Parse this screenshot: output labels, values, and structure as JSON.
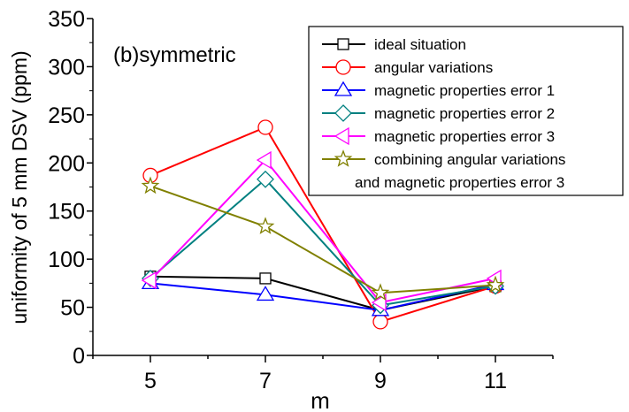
{
  "chart_data": {
    "type": "line",
    "title": "(b)symmetric",
    "xlabel": "m",
    "ylabel": "uniformity of 5 mm DSV (ppm)",
    "x": [
      5,
      7,
      9,
      11
    ],
    "xlim": [
      4,
      12
    ],
    "ylim": [
      0,
      350
    ],
    "xticks": [
      "5",
      "7",
      "9",
      "11"
    ],
    "yticks": [
      "0",
      "50",
      "100",
      "150",
      "200",
      "250",
      "300",
      "350"
    ],
    "legend_position": "top-right",
    "series": [
      {
        "name": "ideal situation",
        "color": "#000000",
        "marker": "square",
        "values": [
          82,
          80,
          47,
          72
        ]
      },
      {
        "name": "angular variations",
        "color": "#ff0000",
        "marker": "circle",
        "values": [
          187,
          237,
          35,
          72
        ]
      },
      {
        "name": "magnetic properties error 1",
        "color": "#0000ff",
        "marker": "triangle-up",
        "values": [
          75,
          63,
          47,
          74
        ]
      },
      {
        "name": "magnetic properties error 2",
        "color": "#008080",
        "marker": "diamond",
        "values": [
          80,
          183,
          52,
          72
        ]
      },
      {
        "name": "magnetic properties error 3",
        "color": "#ff00ff",
        "marker": "triangle-left",
        "values": [
          78,
          203,
          55,
          80
        ]
      },
      {
        "name": "combining angular variations",
        "name_line2": "and magnetic properties error 3",
        "color": "#808000",
        "marker": "star",
        "values": [
          176,
          134,
          65,
          73
        ]
      }
    ]
  }
}
